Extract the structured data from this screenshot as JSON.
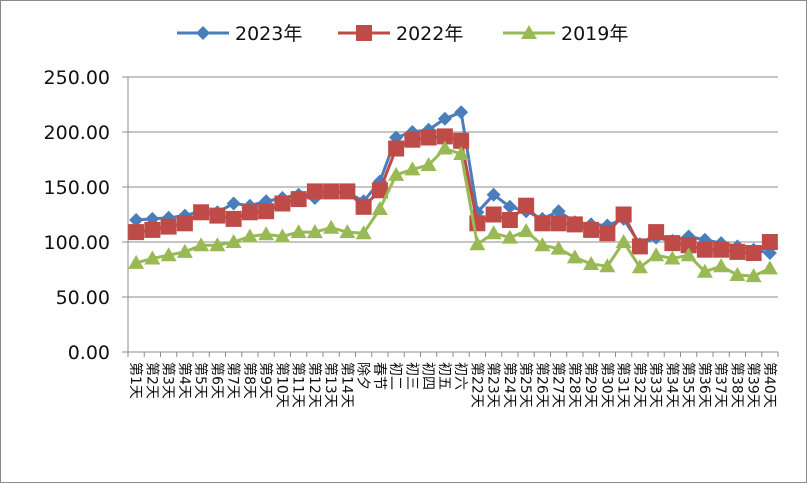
{
  "chart_data": {
    "type": "line",
    "title": "",
    "xlabel": "",
    "ylabel": "",
    "ylim": [
      0,
      250
    ],
    "yticks": [
      "0.00",
      "50.00",
      "100.00",
      "150.00",
      "200.00",
      "250.00"
    ],
    "grid": true,
    "legend_position": "top",
    "categories": [
      "第1天",
      "第2天",
      "第3天",
      "第4天",
      "第5天",
      "第6天",
      "第7天",
      "第8天",
      "第9天",
      "第10天",
      "第11天",
      "第12天",
      "第13天",
      "第14天",
      "除夕",
      "春节",
      "初二",
      "初三",
      "初四",
      "初五",
      "初六",
      "第22天",
      "第23天",
      "第24天",
      "第25天",
      "第26天",
      "第27天",
      "第28天",
      "第29天",
      "第30天",
      "第31天",
      "第32天",
      "第33天",
      "第34天",
      "第35天",
      "第36天",
      "第37天",
      "第38天",
      "第39天",
      "第40天"
    ],
    "series": [
      {
        "name": "2023年",
        "color": "#4a7ebb",
        "marker": "diamond",
        "values": [
          120,
          121,
          122,
          124,
          128,
          127,
          135,
          133,
          137,
          140,
          143,
          140,
          145,
          145,
          137,
          155,
          195,
          200,
          202,
          212,
          218,
          127,
          143,
          132,
          128,
          121,
          128,
          118,
          116,
          115,
          121,
          98,
          104,
          101,
          105,
          102,
          99,
          96,
          93,
          90
        ]
      },
      {
        "name": "2022年",
        "color": "#be4b48",
        "marker": "square",
        "values": [
          109,
          111,
          114,
          117,
          127,
          124,
          121,
          127,
          128,
          135,
          139,
          146,
          146,
          146,
          132,
          147,
          185,
          193,
          195,
          196,
          192,
          117,
          125,
          120,
          133,
          117,
          117,
          116,
          111,
          108,
          125,
          96,
          109,
          99,
          97,
          93,
          93,
          91,
          90,
          100
        ]
      },
      {
        "name": "2019年",
        "color": "#98b954",
        "marker": "triangle",
        "values": [
          81,
          85,
          88,
          91,
          97,
          97,
          100,
          105,
          107,
          105,
          109,
          109,
          113,
          109,
          108,
          130,
          161,
          166,
          170,
          185,
          180,
          98,
          108,
          104,
          110,
          97,
          94,
          86,
          80,
          78,
          100,
          77,
          88,
          85,
          88,
          73,
          78,
          70,
          69,
          76
        ]
      }
    ]
  }
}
